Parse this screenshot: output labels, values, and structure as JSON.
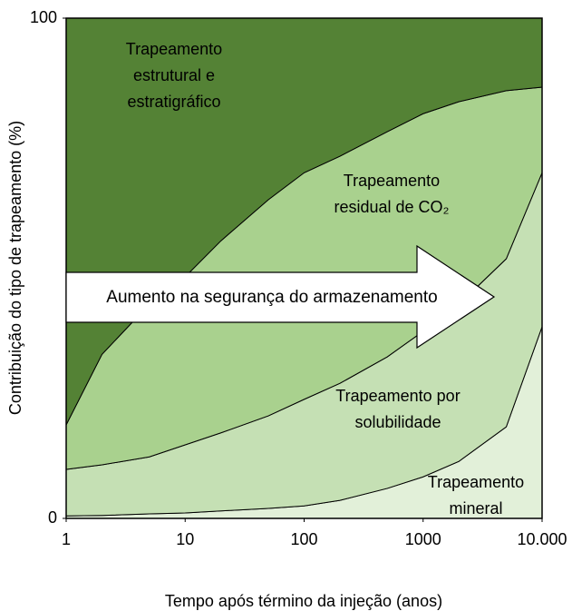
{
  "chart_data": {
    "type": "stacked_area",
    "xlabel": "Tempo após término da injeção (anos)",
    "ylabel": "Contribuição do tipo de trapeamento (%)",
    "xscale": "log",
    "x": [
      1,
      2,
      5,
      10,
      20,
      50,
      100,
      200,
      500,
      1000,
      2000,
      5000,
      10000
    ],
    "xlim": [
      1,
      10000
    ],
    "xticks": [
      1,
      10,
      100,
      1000,
      {
        "value": 10000,
        "label": "10.000"
      }
    ],
    "ylim": [
      0,
      100
    ],
    "yticks": [
      0,
      100
    ],
    "series": [
      {
        "label": [
          "Trapeamento",
          "mineral"
        ],
        "color": "#e2f0d9",
        "values": [
          0.5,
          0.6,
          0.9,
          1.1,
          1.5,
          2,
          2.5,
          3.6,
          6,
          8.3,
          11.4,
          18.3,
          38.3
        ]
      },
      {
        "label": [
          "Trapeamento por",
          "solubilidade"
        ],
        "color": "#c5e0b4",
        "values": [
          9.3,
          10.1,
          11.4,
          13.6,
          15.6,
          18.5,
          21.3,
          23.4,
          26.3,
          29.1,
          31.4,
          33.6,
          30.8
        ]
      },
      {
        "label": [
          "Trapeamento",
          "residual de CO₂"
        ],
        "color": "#a9d18e",
        "values": [
          8.9,
          22.1,
          30.5,
          33.6,
          38.4,
          43.2,
          45.3,
          45.4,
          45.0,
          43.5,
          40.5,
          33.6,
          17.1
        ]
      },
      {
        "label": [
          "Trapeamento",
          "estrutural e",
          "estratigráfico"
        ],
        "color": "#548235",
        "values": [
          81.3,
          67.2,
          57.2,
          51.7,
          44.5,
          36.3,
          30.9,
          27.6,
          22.7,
          19.1,
          16.7,
          14.5,
          13.8
        ]
      }
    ],
    "annotation": "Aumento na segurança do armazenamento"
  }
}
